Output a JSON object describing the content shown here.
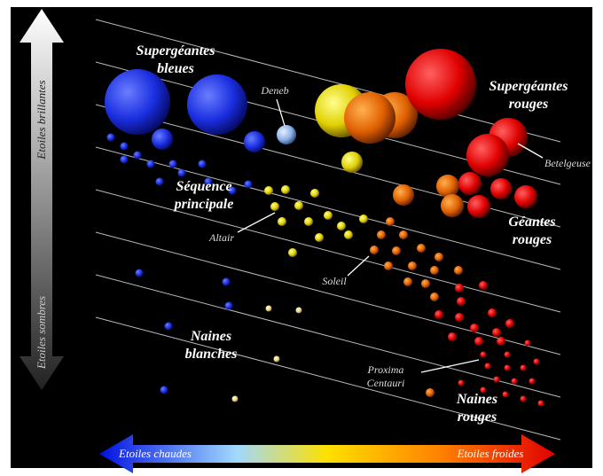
{
  "axes": {
    "bright": "Etoiles brillantes",
    "dim": "Etoiles sombres",
    "hot": "Etoiles chaudes",
    "cold": "Etoiles froides"
  },
  "regions": [
    {
      "lines": [
        "Supergéantes",
        "bleues"
      ]
    },
    {
      "lines": [
        "Supergéantes",
        "rouges"
      ]
    },
    {
      "lines": [
        "Séquence",
        "principale"
      ]
    },
    {
      "lines": [
        "Géantes",
        "rouges"
      ]
    },
    {
      "lines": [
        "Naines",
        "blanches"
      ]
    },
    {
      "lines": [
        "Naines",
        "rouges"
      ]
    }
  ],
  "stars": [
    {
      "lines": [
        "Deneb"
      ]
    },
    {
      "lines": [
        "Betelgeuse"
      ]
    },
    {
      "lines": [
        "Altair"
      ]
    },
    {
      "lines": [
        "Soleil"
      ]
    },
    {
      "lines": [
        "Proxima",
        "Centauri"
      ]
    }
  ]
}
